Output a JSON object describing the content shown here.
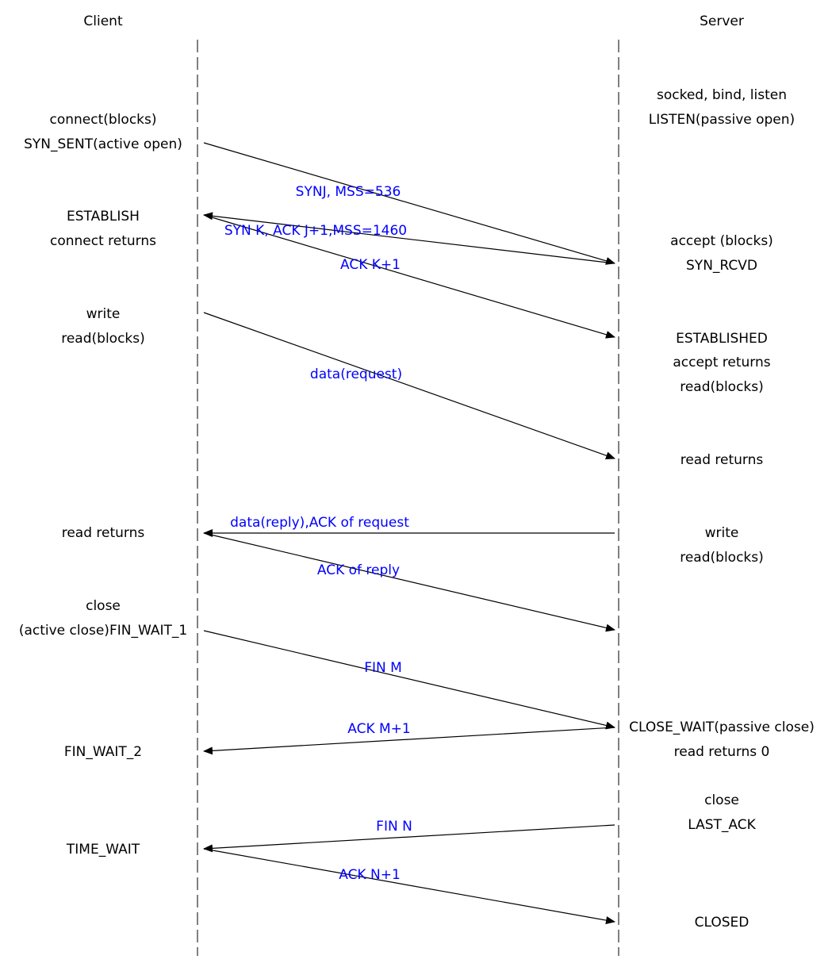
{
  "headers": {
    "client": "Client",
    "server": "Server"
  },
  "colors": {
    "message": "#0000ff",
    "line": "#000000",
    "text": "#000000"
  },
  "client_states": [
    "connect(blocks)",
    "SYN_SENT(active open)",
    "ESTABLISH",
    "connect returns",
    "write",
    "read(blocks)",
    "read returns",
    "close",
    "(active close)FIN_WAIT_1",
    "FIN_WAIT_2",
    "TIME_WAIT"
  ],
  "server_states": [
    "socked, bind, listen",
    "LISTEN(passive open)",
    "accept (blocks)",
    "SYN_RCVD",
    "ESTABLISHED",
    "accept returns",
    "read(blocks)",
    "read returns",
    "write",
    "read(blocks)",
    "CLOSE_WAIT(passive close)",
    "read returns 0",
    "close",
    "LAST_ACK",
    "CLOSED"
  ],
  "messages": [
    {
      "label": "SYNJ, MSS=536",
      "direction": "client-to-server"
    },
    {
      "label": "SYN K, ACK J+1,MSS=1460",
      "direction": "server-to-client"
    },
    {
      "label": "ACK K+1",
      "direction": "client-to-server"
    },
    {
      "label": "data(request)",
      "direction": "client-to-server"
    },
    {
      "label": "data(reply),ACK of request",
      "direction": "server-to-client"
    },
    {
      "label": "ACK of reply",
      "direction": "client-to-server"
    },
    {
      "label": "FIN M",
      "direction": "client-to-server"
    },
    {
      "label": "ACK M+1",
      "direction": "server-to-client"
    },
    {
      "label": "FIN N",
      "direction": "server-to-client"
    },
    {
      "label": "ACK N+1",
      "direction": "client-to-server"
    }
  ]
}
